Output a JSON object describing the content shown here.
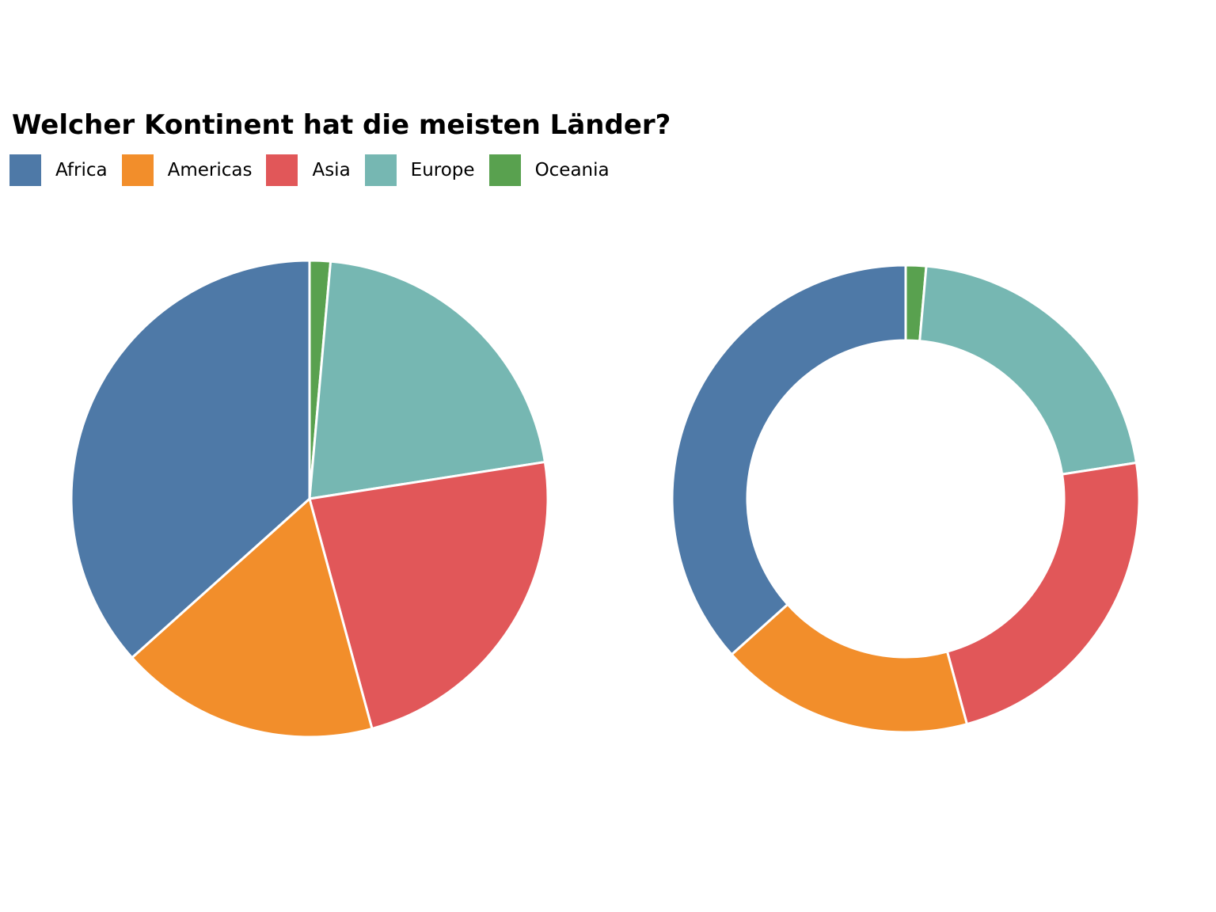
{
  "chart_data": [
    {
      "type": "pie",
      "title": "Welcher Kontinent hat die meisten Länder?",
      "categories": [
        "Africa",
        "Americas",
        "Asia",
        "Europe",
        "Oceania"
      ],
      "values": [
        52,
        25,
        33,
        30,
        2
      ],
      "colors": [
        "#4E79A7",
        "#F28E2B",
        "#E15759",
        "#76B7B2",
        "#59A14F"
      ],
      "legend_position": "top-left"
    },
    {
      "type": "donut",
      "categories": [
        "Africa",
        "Americas",
        "Asia",
        "Europe",
        "Oceania"
      ],
      "values": [
        52,
        25,
        33,
        30,
        2
      ],
      "colors": [
        "#4E79A7",
        "#F28E2B",
        "#E15759",
        "#76B7B2",
        "#59A14F"
      ]
    }
  ],
  "title": "Welcher Kontinent hat die meisten Länder?",
  "legend": [
    {
      "label": "Africa",
      "color": "#4E79A7"
    },
    {
      "label": "Americas",
      "color": "#F28E2B"
    },
    {
      "label": "Asia",
      "color": "#E15759"
    },
    {
      "label": "Europe",
      "color": "#76B7B2"
    },
    {
      "label": "Oceania",
      "color": "#59A14F"
    }
  ]
}
